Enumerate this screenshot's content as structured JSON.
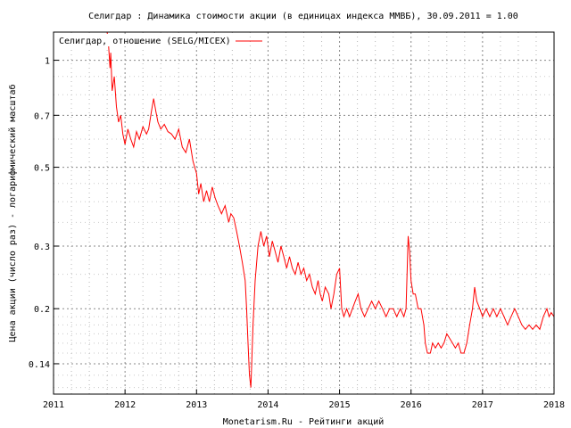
{
  "chart_data": {
    "type": "line",
    "title": "Селигдар : Динамика стоимости акции (в единицах индекса ММВБ), 30.09.2011 = 1.00",
    "xlabel": "Monetarism.Ru - Рейтинги акций",
    "ylabel": "Цена акции (число раз) - логарифмический масштаб",
    "x_ticks": [
      "2011",
      "2012",
      "2013",
      "2014",
      "2015",
      "2016",
      "2017",
      "2018"
    ],
    "y_ticks": [
      {
        "value": 1,
        "label": "1"
      },
      {
        "value": 0.7,
        "label": "0.7"
      },
      {
        "value": 0.5,
        "label": "0.5"
      },
      {
        "value": 0.3,
        "label": "0.3"
      },
      {
        "value": 0.2,
        "label": "0.2"
      },
      {
        "value": 0.14,
        "label": "0.14"
      }
    ],
    "y_scale": "log",
    "xlim": [
      2011,
      2018
    ],
    "ylim": [
      0.115,
      1.2
    ],
    "grid": true,
    "legend_position": "top-left",
    "series": [
      {
        "name": "Селигдар, отношение (SELG/MICEX)",
        "color": "#ff0000",
        "points": [
          [
            2011.75,
            1.2
          ],
          [
            2011.77,
            1.1
          ],
          [
            2011.79,
            0.95
          ],
          [
            2011.8,
            1.05
          ],
          [
            2011.82,
            0.82
          ],
          [
            2011.85,
            0.9
          ],
          [
            2011.88,
            0.74
          ],
          [
            2011.91,
            0.67
          ],
          [
            2011.94,
            0.7
          ],
          [
            2011.97,
            0.62
          ],
          [
            2012.0,
            0.58
          ],
          [
            2012.04,
            0.64
          ],
          [
            2012.08,
            0.6
          ],
          [
            2012.12,
            0.57
          ],
          [
            2012.16,
            0.63
          ],
          [
            2012.2,
            0.6
          ],
          [
            2012.25,
            0.65
          ],
          [
            2012.3,
            0.62
          ],
          [
            2012.33,
            0.64
          ],
          [
            2012.37,
            0.72
          ],
          [
            2012.4,
            0.78
          ],
          [
            2012.43,
            0.72
          ],
          [
            2012.46,
            0.67
          ],
          [
            2012.5,
            0.64
          ],
          [
            2012.55,
            0.66
          ],
          [
            2012.6,
            0.63
          ],
          [
            2012.65,
            0.62
          ],
          [
            2012.7,
            0.6
          ],
          [
            2012.75,
            0.64
          ],
          [
            2012.8,
            0.57
          ],
          [
            2012.85,
            0.55
          ],
          [
            2012.9,
            0.6
          ],
          [
            2012.95,
            0.52
          ],
          [
            2013.0,
            0.48
          ],
          [
            2013.03,
            0.42
          ],
          [
            2013.06,
            0.45
          ],
          [
            2013.1,
            0.4
          ],
          [
            2013.14,
            0.43
          ],
          [
            2013.18,
            0.4
          ],
          [
            2013.22,
            0.44
          ],
          [
            2013.26,
            0.41
          ],
          [
            2013.3,
            0.39
          ],
          [
            2013.35,
            0.37
          ],
          [
            2013.4,
            0.39
          ],
          [
            2013.45,
            0.35
          ],
          [
            2013.48,
            0.37
          ],
          [
            2013.52,
            0.36
          ],
          [
            2013.56,
            0.33
          ],
          [
            2013.6,
            0.3
          ],
          [
            2013.64,
            0.27
          ],
          [
            2013.68,
            0.24
          ],
          [
            2013.7,
            0.2
          ],
          [
            2013.72,
            0.16
          ],
          [
            2013.74,
            0.13
          ],
          [
            2013.76,
            0.12
          ],
          [
            2013.79,
            0.18
          ],
          [
            2013.82,
            0.24
          ],
          [
            2013.86,
            0.3
          ],
          [
            2013.9,
            0.33
          ],
          [
            2013.94,
            0.3
          ],
          [
            2013.98,
            0.32
          ],
          [
            2014.02,
            0.28
          ],
          [
            2014.06,
            0.31
          ],
          [
            2014.1,
            0.29
          ],
          [
            2014.14,
            0.27
          ],
          [
            2014.18,
            0.3
          ],
          [
            2014.22,
            0.28
          ],
          [
            2014.26,
            0.26
          ],
          [
            2014.3,
            0.28
          ],
          [
            2014.34,
            0.26
          ],
          [
            2014.38,
            0.25
          ],
          [
            2014.42,
            0.27
          ],
          [
            2014.46,
            0.25
          ],
          [
            2014.5,
            0.26
          ],
          [
            2014.54,
            0.24
          ],
          [
            2014.58,
            0.25
          ],
          [
            2014.62,
            0.23
          ],
          [
            2014.66,
            0.22
          ],
          [
            2014.7,
            0.24
          ],
          [
            2014.73,
            0.22
          ],
          [
            2014.76,
            0.21
          ],
          [
            2014.8,
            0.23
          ],
          [
            2014.85,
            0.22
          ],
          [
            2014.88,
            0.2
          ],
          [
            2014.92,
            0.22
          ],
          [
            2014.96,
            0.25
          ],
          [
            2015.0,
            0.26
          ],
          [
            2015.03,
            0.2
          ],
          [
            2015.06,
            0.19
          ],
          [
            2015.1,
            0.2
          ],
          [
            2015.14,
            0.19
          ],
          [
            2015.18,
            0.2
          ],
          [
            2015.22,
            0.21
          ],
          [
            2015.26,
            0.22
          ],
          [
            2015.3,
            0.2
          ],
          [
            2015.35,
            0.19
          ],
          [
            2015.4,
            0.2
          ],
          [
            2015.45,
            0.21
          ],
          [
            2015.5,
            0.2
          ],
          [
            2015.55,
            0.21
          ],
          [
            2015.6,
            0.2
          ],
          [
            2015.65,
            0.19
          ],
          [
            2015.7,
            0.2
          ],
          [
            2015.75,
            0.2
          ],
          [
            2015.8,
            0.19
          ],
          [
            2015.85,
            0.2
          ],
          [
            2015.9,
            0.19
          ],
          [
            2015.93,
            0.2
          ],
          [
            2015.96,
            0.32
          ],
          [
            2015.98,
            0.29
          ],
          [
            2016.0,
            0.24
          ],
          [
            2016.03,
            0.22
          ],
          [
            2016.06,
            0.22
          ],
          [
            2016.1,
            0.2
          ],
          [
            2016.14,
            0.2
          ],
          [
            2016.18,
            0.18
          ],
          [
            2016.2,
            0.16
          ],
          [
            2016.23,
            0.15
          ],
          [
            2016.27,
            0.15
          ],
          [
            2016.3,
            0.16
          ],
          [
            2016.34,
            0.155
          ],
          [
            2016.38,
            0.16
          ],
          [
            2016.42,
            0.155
          ],
          [
            2016.46,
            0.16
          ],
          [
            2016.5,
            0.17
          ],
          [
            2016.54,
            0.165
          ],
          [
            2016.58,
            0.16
          ],
          [
            2016.62,
            0.155
          ],
          [
            2016.66,
            0.16
          ],
          [
            2016.7,
            0.15
          ],
          [
            2016.74,
            0.15
          ],
          [
            2016.78,
            0.16
          ],
          [
            2016.82,
            0.18
          ],
          [
            2016.86,
            0.2
          ],
          [
            2016.89,
            0.23
          ],
          [
            2016.92,
            0.21
          ],
          [
            2016.96,
            0.2
          ],
          [
            2017.0,
            0.19
          ],
          [
            2017.05,
            0.2
          ],
          [
            2017.1,
            0.19
          ],
          [
            2017.15,
            0.2
          ],
          [
            2017.2,
            0.19
          ],
          [
            2017.25,
            0.2
          ],
          [
            2017.3,
            0.19
          ],
          [
            2017.35,
            0.18
          ],
          [
            2017.4,
            0.19
          ],
          [
            2017.45,
            0.2
          ],
          [
            2017.5,
            0.19
          ],
          [
            2017.55,
            0.18
          ],
          [
            2017.6,
            0.175
          ],
          [
            2017.65,
            0.18
          ],
          [
            2017.7,
            0.175
          ],
          [
            2017.75,
            0.18
          ],
          [
            2017.8,
            0.175
          ],
          [
            2017.85,
            0.19
          ],
          [
            2017.9,
            0.2
          ],
          [
            2017.93,
            0.19
          ],
          [
            2017.96,
            0.195
          ],
          [
            2018.0,
            0.19
          ]
        ]
      }
    ]
  }
}
